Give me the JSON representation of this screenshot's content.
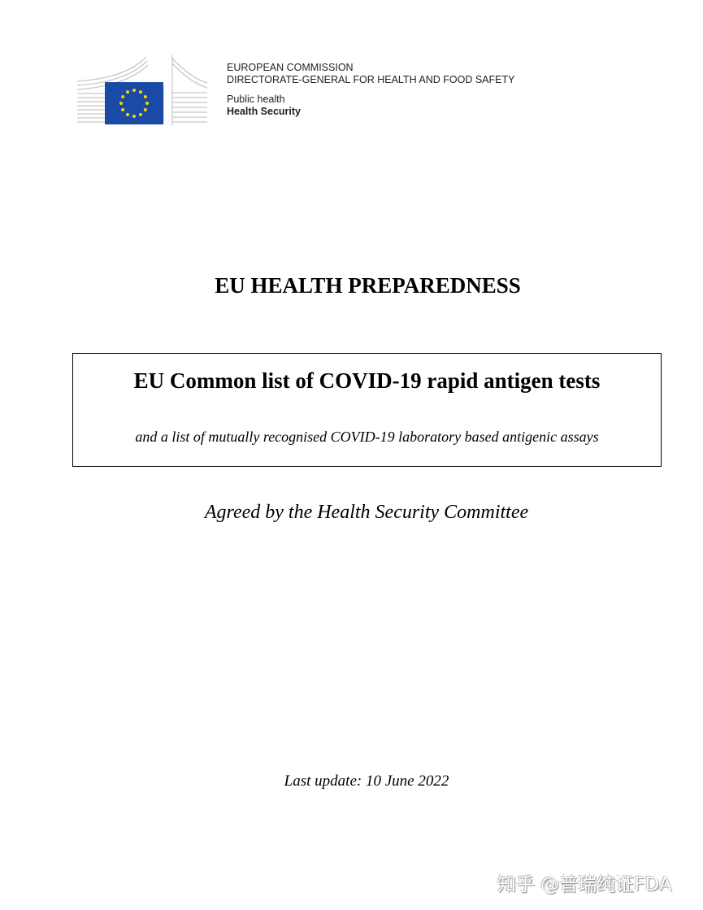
{
  "header": {
    "org": "EUROPEAN COMMISSION",
    "dg": "DIRECTORATE-GENERAL FOR HEALTH AND FOOD SAFETY",
    "unit": "Public health",
    "subunit": "Health Security",
    "flag_color": "#1a4aa6",
    "star_color": "#f5d600"
  },
  "document": {
    "title": "EU HEALTH PREPAREDNESS",
    "box_title": "EU Common list of COVID-19 rapid antigen tests",
    "box_subtitle": "and a list of mutually recognised COVID-19 laboratory based antigenic assays",
    "agreed": "Agreed by the Health Security Committee",
    "last_update": "Last update: 10 June 2022"
  },
  "watermark": "知乎 @普瑞纯证FDA"
}
